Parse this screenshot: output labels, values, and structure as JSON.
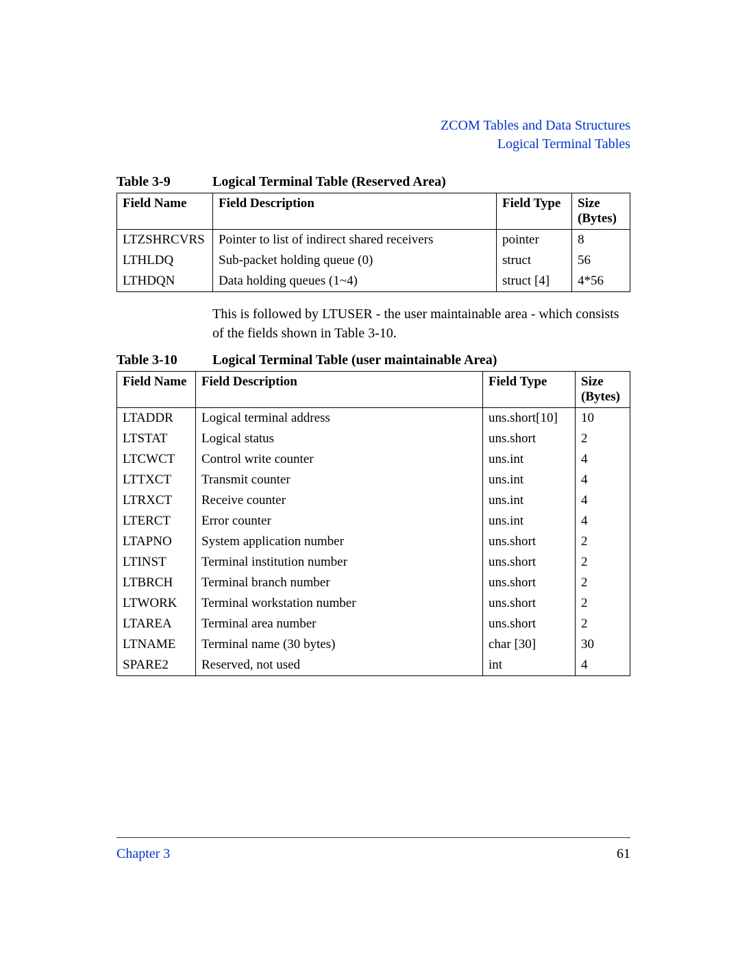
{
  "colors": {
    "link": "#0033cc",
    "text": "#000000",
    "rule": "#333333",
    "background": "#ffffff",
    "table_border": "#000000"
  },
  "header": {
    "line1": "ZCOM Tables and Data Structures",
    "line2": "Logical Terminal Tables"
  },
  "table9": {
    "label": "Table 3-9",
    "caption": "Logical Terminal Table (Reserved Area)",
    "columns": [
      "Field Name",
      "Field Description",
      "Field Type",
      "Size (Bytes)"
    ],
    "rows": [
      [
        "LTZSHRCVRS",
        "Pointer to list of indirect shared receivers",
        "pointer",
        "8"
      ],
      [
        "LTHLDQ",
        "Sub-packet holding queue (0)",
        "struct",
        "56"
      ],
      [
        "LTHDQN",
        "Data holding queues (1~4)",
        "struct [4]",
        "4*56"
      ]
    ]
  },
  "interlude": "This is followed by LTUSER - the user maintainable area - which consists of the fields shown in Table 3-10.",
  "table10": {
    "label": "Table 3-10",
    "caption": "Logical Terminal Table (user maintainable Area)",
    "columns": [
      "Field Name",
      "Field Description",
      "Field Type",
      "Size (Bytes)"
    ],
    "rows": [
      [
        "LTADDR",
        "Logical terminal address",
        "uns.short[10]",
        "10"
      ],
      [
        "LTSTAT",
        "Logical status",
        "uns.short",
        "2"
      ],
      [
        "LTCWCT",
        "Control write counter",
        "uns.int",
        "4"
      ],
      [
        "LTTXCT",
        "Transmit counter",
        "uns.int",
        "4"
      ],
      [
        "LTRXCT",
        "Receive counter",
        "uns.int",
        "4"
      ],
      [
        "LTERCT",
        "Error counter",
        "uns.int",
        "4"
      ],
      [
        "LTAPNO",
        "System application number",
        "uns.short",
        "2"
      ],
      [
        "LTINST",
        "Terminal institution number",
        "uns.short",
        "2"
      ],
      [
        "LTBRCH",
        "Terminal branch number",
        "uns.short",
        "2"
      ],
      [
        "LTWORK",
        "Terminal workstation number",
        "uns.short",
        "2"
      ],
      [
        "LTAREA",
        "Terminal area number",
        "uns.short",
        "2"
      ],
      [
        "LTNAME",
        "Terminal name (30 bytes)",
        "char [30]",
        "30"
      ],
      [
        "SPARE2",
        "Reserved, not used",
        "int",
        "4"
      ]
    ]
  },
  "footer": {
    "chapter": "Chapter 3",
    "page": "61"
  }
}
